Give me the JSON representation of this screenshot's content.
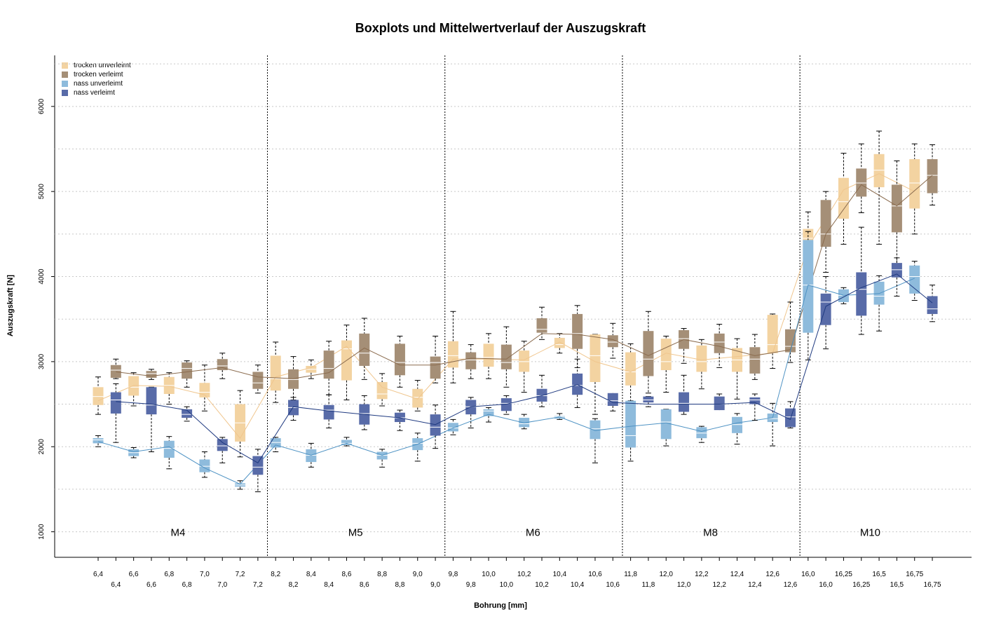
{
  "chart_data": {
    "type": "box",
    "title": "Boxplots und Mittelwertverlauf der Auszugskraft",
    "xlabel": "Bohrung [mm]",
    "ylabel": "Auszugskraft [N]",
    "ylim": [
      700,
      6600
    ],
    "yticks": [
      1000,
      2000,
      3000,
      4000,
      5000,
      6000
    ],
    "groups": [
      "M4",
      "M5",
      "M6",
      "M8",
      "M10"
    ],
    "legend": [
      {
        "name": "trocken unverleimt",
        "color": "#f3d3a1"
      },
      {
        "name": "trocken verleimt",
        "color": "#a58f77"
      },
      {
        "name": "nass unverleimt",
        "color": "#8ebbdc"
      },
      {
        "name": "nass verleimt",
        "color": "#586ba8"
      }
    ],
    "line_colors": {
      "trocken unverleimt": "#f0c68e",
      "trocken verleimt": "#8b6c4f",
      "nass unverleimt": "#4f93c4",
      "nass verleimt": "#1f3a80"
    },
    "x_labels_top": [
      "6,4",
      "6,6",
      "6,8",
      "7,0",
      "7,2",
      "8,2",
      "8,4",
      "8,6",
      "8,8",
      "9,0",
      "9,8",
      "10,0",
      "10,2",
      "10,4",
      "10,6",
      "11,8",
      "12,0",
      "12,2",
      "12,4",
      "12,6",
      "16,0",
      "16,25",
      "16,5",
      "16,75"
    ],
    "x_labels_bottom": [
      "6,4",
      "6,6",
      "6,8",
      "7,0",
      "7,2",
      "8,2",
      "8,4",
      "8,6",
      "8,8",
      "9,0",
      "9,8",
      "10,0",
      "10,2",
      "10,4",
      "10,6",
      "11,8",
      "12,0",
      "12,2",
      "12,4",
      "12,6",
      "16,0",
      "16,25",
      "16,5",
      "16,75"
    ],
    "series": {
      "trocken unverleimt": {
        "diameters": [
          "6,4",
          "6,6",
          "6,8",
          "7,0",
          "7,2",
          "8,2",
          "8,4",
          "8,6",
          "8,8",
          "9,0",
          "9,8",
          "10,0",
          "10,2",
          "10,4",
          "10,6",
          "11,8",
          "12,0",
          "12,2",
          "12,4",
          "12,6",
          "16,0",
          "16,25",
          "16,5",
          "16,75"
        ],
        "boxes": [
          [
            2380,
            2490,
            2590,
            2700,
            2820
          ],
          [
            2480,
            2600,
            2700,
            2830,
            2870
          ],
          [
            2500,
            2620,
            2720,
            2820,
            2870
          ],
          [
            2420,
            2580,
            2640,
            2750,
            2960
          ],
          [
            1880,
            2060,
            2280,
            2500,
            2660
          ],
          [
            2520,
            2660,
            2800,
            3070,
            3230
          ],
          [
            2800,
            2870,
            2910,
            2950,
            3020
          ],
          [
            2550,
            2780,
            3150,
            3250,
            3430
          ],
          [
            2480,
            2560,
            2620,
            2760,
            2860
          ],
          [
            2420,
            2460,
            2580,
            2680,
            2780
          ],
          [
            2750,
            2930,
            3070,
            3240,
            3590
          ],
          [
            2800,
            2940,
            3050,
            3210,
            3330
          ],
          [
            2640,
            2880,
            3000,
            3130,
            3240
          ],
          [
            3100,
            3160,
            3200,
            3280,
            3330
          ],
          [
            2380,
            2760,
            3070,
            3320,
            3320
          ],
          [
            2440,
            2720,
            2880,
            3110,
            3210
          ],
          [
            2640,
            2900,
            3000,
            3270,
            3300
          ],
          [
            2680,
            2880,
            3000,
            3190,
            3260
          ],
          [
            2560,
            2880,
            3020,
            3160,
            3270
          ],
          [
            2920,
            3100,
            3200,
            3550,
            3560
          ],
          [
            4150,
            4430,
            4450,
            4560,
            4760
          ],
          [
            4380,
            4680,
            4880,
            5160,
            5450
          ],
          [
            4380,
            5050,
            5250,
            5440,
            5710
          ],
          [
            4500,
            4800,
            5100,
            5380,
            5560
          ]
        ],
        "means": [
          2540,
          2720,
          2710,
          2610,
          2100,
          2820,
          2930,
          3180,
          2700,
          2560,
          3030,
          3030,
          3020,
          3230,
          3000,
          2880,
          3100,
          3020,
          3060,
          3100,
          4350,
          5020,
          5210,
          5000
        ]
      },
      "trocken verleimt": {
        "diameters": [
          "6,4",
          "6,6",
          "6,8",
          "7,0",
          "7,2",
          "8,2",
          "8,4",
          "8,6",
          "8,8",
          "9,0",
          "9,8",
          "10,0",
          "10,2",
          "10,4",
          "10,6",
          "11,8",
          "12,0",
          "12,2",
          "12,4",
          "12,6",
          "16,0",
          "16,25",
          "16,5",
          "16,75"
        ],
        "boxes": [
          [
            2800,
            2810,
            2900,
            2960,
            3030
          ],
          [
            2790,
            2810,
            2860,
            2890,
            2910
          ],
          [
            2700,
            2800,
            2920,
            2990,
            3010
          ],
          [
            2800,
            2900,
            2950,
            3030,
            3100
          ],
          [
            2630,
            2680,
            2750,
            2880,
            2960
          ],
          [
            2550,
            2680,
            2790,
            2910,
            3060
          ],
          [
            2610,
            2800,
            2920,
            3130,
            3240
          ],
          [
            2790,
            2950,
            3100,
            3330,
            3510
          ],
          [
            2700,
            2840,
            2990,
            3210,
            3300
          ],
          [
            2750,
            2800,
            2990,
            3060,
            3300
          ],
          [
            2800,
            2910,
            3020,
            3110,
            3200
          ],
          [
            2700,
            2910,
            2990,
            3200,
            3410
          ],
          [
            3260,
            3340,
            3380,
            3510,
            3640
          ],
          [
            2930,
            3150,
            3330,
            3560,
            3660
          ],
          [
            3040,
            3170,
            3230,
            3310,
            3450
          ],
          [
            2630,
            2830,
            3030,
            3360,
            3590
          ],
          [
            2980,
            3150,
            3270,
            3370,
            3390
          ],
          [
            2930,
            3100,
            3230,
            3330,
            3440
          ],
          [
            2790,
            2860,
            3030,
            3170,
            3320
          ],
          [
            2990,
            3110,
            3180,
            3380,
            3700
          ],
          [
            4050,
            4350,
            4500,
            4900,
            5000
          ],
          [
            4750,
            4940,
            5100,
            5270,
            5560
          ],
          [
            4140,
            4520,
            4830,
            5080,
            5360
          ],
          [
            4840,
            4980,
            5190,
            5380,
            5550
          ]
        ],
        "means": [
          2880,
          2830,
          2880,
          2930,
          2820,
          2800,
          2870,
          3160,
          2960,
          2960,
          3040,
          3030,
          3330,
          3320,
          3260,
          3070,
          3260,
          3180,
          3070,
          3140,
          4500,
          5080,
          4830,
          5190
        ]
      },
      "nass unverleimt": {
        "diameters": [
          "6,4",
          "6,6",
          "6,8",
          "7,0",
          "7,2",
          "8,2",
          "8,4",
          "8,6",
          "8,8",
          "9,0",
          "9,8",
          "10,0",
          "10,2",
          "10,4",
          "10,6",
          "11,8",
          "12,0",
          "12,2",
          "12,4",
          "12,6",
          "16,0",
          "16,25",
          "16,5",
          "16,75"
        ],
        "boxes": [
          [
            2000,
            2040,
            2080,
            2100,
            2130
          ],
          [
            1870,
            1890,
            1930,
            1970,
            1990
          ],
          [
            1740,
            1870,
            1980,
            2070,
            2120
          ],
          [
            1640,
            1700,
            1770,
            1850,
            1940
          ],
          [
            1500,
            1530,
            1550,
            1570,
            1600
          ],
          [
            1940,
            1990,
            2050,
            2100,
            2110
          ],
          [
            1760,
            1820,
            1900,
            1970,
            2040
          ],
          [
            2010,
            2020,
            2040,
            2080,
            2110
          ],
          [
            1760,
            1850,
            1900,
            1940,
            1970
          ],
          [
            1830,
            1960,
            2040,
            2100,
            2160
          ],
          [
            2140,
            2180,
            2220,
            2280,
            2320
          ],
          [
            2290,
            2360,
            2420,
            2440,
            2460
          ],
          [
            2210,
            2230,
            2270,
            2340,
            2380
          ],
          [
            2320,
            2330,
            2350,
            2360,
            2390
          ],
          [
            1810,
            2090,
            2210,
            2310,
            2330
          ],
          [
            1830,
            1990,
            2130,
            2540,
            2540
          ],
          [
            2010,
            2090,
            2290,
            2440,
            2440
          ],
          [
            2050,
            2100,
            2160,
            2230,
            2240
          ],
          [
            2030,
            2160,
            2260,
            2350,
            2390
          ],
          [
            2010,
            2290,
            2330,
            2390,
            2510
          ],
          [
            3020,
            3340,
            3900,
            4430,
            4530
          ],
          [
            3680,
            3700,
            3780,
            3850,
            3870
          ],
          [
            3360,
            3670,
            3770,
            3940,
            4010
          ],
          [
            3720,
            3800,
            4000,
            4130,
            4180
          ]
        ],
        "means": [
          2060,
          1940,
          2000,
          1750,
          1560,
          2020,
          1900,
          2040,
          1900,
          2030,
          2220,
          2380,
          2280,
          2350,
          2190,
          2240,
          2280,
          2180,
          2280,
          2340,
          3900,
          3780,
          3800,
          3980
        ]
      },
      "nass verleimt": {
        "diameters": [
          "6,4",
          "6,6",
          "6,8",
          "7,0",
          "7,2",
          "8,2",
          "8,4",
          "8,6",
          "8,8",
          "9,0",
          "9,8",
          "10,0",
          "10,2",
          "10,4",
          "10,6",
          "11,8",
          "12,0",
          "12,2",
          "12,4",
          "12,6",
          "16,0",
          "16,25",
          "16,5",
          "16,75"
        ],
        "boxes": [
          [
            2050,
            2390,
            2550,
            2640,
            2740
          ],
          [
            1940,
            2380,
            2490,
            2700,
            2700
          ],
          [
            2300,
            2340,
            2380,
            2440,
            2470
          ],
          [
            1810,
            1950,
            2010,
            2090,
            2110
          ],
          [
            1470,
            1670,
            1760,
            1890,
            1970
          ],
          [
            2310,
            2370,
            2460,
            2550,
            2580
          ],
          [
            2220,
            2320,
            2430,
            2490,
            2610
          ],
          [
            2200,
            2260,
            2390,
            2500,
            2600
          ],
          [
            2190,
            2290,
            2340,
            2400,
            2430
          ],
          [
            1980,
            2130,
            2230,
            2380,
            2490
          ],
          [
            2220,
            2380,
            2470,
            2550,
            2580
          ],
          [
            2380,
            2420,
            2510,
            2570,
            2600
          ],
          [
            2470,
            2530,
            2600,
            2680,
            2840
          ],
          [
            2460,
            2610,
            2720,
            2860,
            3030
          ],
          [
            2420,
            2480,
            2540,
            2630,
            2620
          ],
          [
            2470,
            2520,
            2550,
            2590,
            2590
          ],
          [
            2380,
            2410,
            2510,
            2640,
            2840
          ],
          [
            2470,
            2430,
            2500,
            2590,
            2620
          ],
          [
            2310,
            2500,
            2550,
            2580,
            2620
          ],
          [
            2220,
            2230,
            2350,
            2450,
            2530
          ],
          [
            3150,
            3430,
            3700,
            3800,
            4000
          ],
          [
            3320,
            3540,
            3850,
            4050,
            4580
          ],
          [
            3770,
            3990,
            4080,
            4160,
            4220
          ],
          [
            3470,
            3560,
            3620,
            3770,
            3900
          ]
        ],
        "means": [
          2530,
          2500,
          2430,
          2050,
          1810,
          2470,
          2420,
          2380,
          2340,
          2260,
          2470,
          2500,
          2600,
          2730,
          2520,
          2500,
          2500,
          2500,
          2520,
          2320,
          3650,
          3870,
          4030,
          3690
        ]
      }
    }
  }
}
